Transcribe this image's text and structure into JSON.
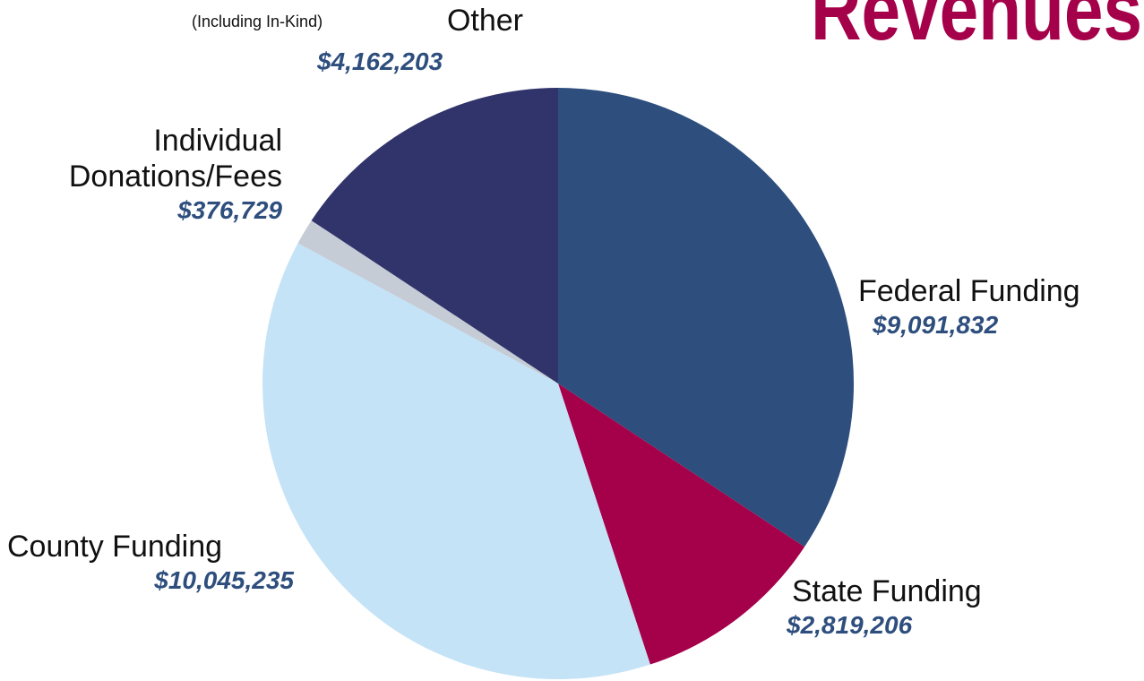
{
  "chart_data": {
    "type": "pie",
    "title": "Revenues",
    "categories": [
      "Federal Funding",
      "State Funding",
      "County Funding",
      "Individual Donations/Fees",
      "Other"
    ],
    "values": [
      9091832,
      2819206,
      10045235,
      376729,
      4162203
    ],
    "value_labels": [
      "$9,091,832",
      "$2,819,206",
      "$10,045,235",
      "$376,729",
      "$4,162,203"
    ],
    "colors": [
      "#2e4e7e",
      "#a5004a",
      "#c5e3f7",
      "#c5ccd6",
      "#31346a"
    ],
    "annotations": [
      "(Including In-Kind)"
    ]
  }
}
